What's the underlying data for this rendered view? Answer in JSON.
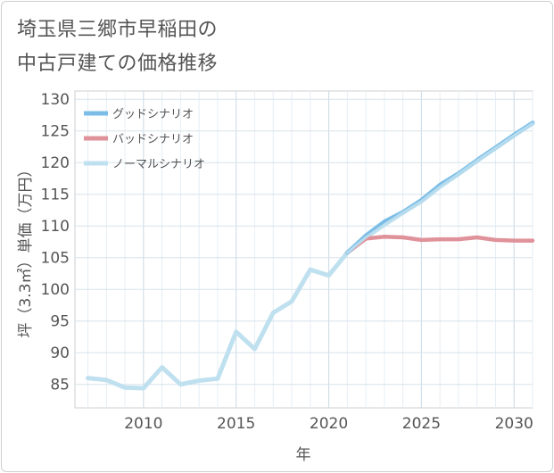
{
  "chart_data": {
    "type": "line",
    "title_line1": "埼玉県三郷市早稲田の",
    "title_line2": "中古戸建ての価格推移",
    "xlabel": "年",
    "ylabel": "坪（3.3㎡）単価（万円）",
    "xlim": [
      2006.3,
      2031
    ],
    "ylim": [
      81.3,
      131.3
    ],
    "x_ticks": [
      2010,
      2015,
      2020,
      2025,
      2030
    ],
    "y_ticks": [
      85,
      90,
      95,
      100,
      105,
      110,
      115,
      120,
      125,
      130
    ],
    "grid": true,
    "legend_position": "top-left",
    "series": [
      {
        "name": "グッドシナリオ",
        "color": "#7bbde6",
        "x": [
          2021,
          2022,
          2023,
          2024,
          2025,
          2026,
          2027,
          2028,
          2029,
          2030,
          2031
        ],
        "y": [
          105.8,
          108.5,
          110.7,
          112.2,
          114.1,
          116.5,
          118.3,
          120.4,
          122.4,
          124.4,
          126.3
        ]
      },
      {
        "name": "バッドシナリオ",
        "color": "#e0929a",
        "x": [
          2021,
          2022,
          2023,
          2024,
          2025,
          2026,
          2027,
          2028,
          2029,
          2030,
          2031
        ],
        "y": [
          105.8,
          108.0,
          108.3,
          108.2,
          107.8,
          107.9,
          107.9,
          108.2,
          107.8,
          107.7,
          107.7
        ]
      },
      {
        "name": "ノーマルシナリオ",
        "color": "#bfe0ef",
        "x": [
          2007,
          2008,
          2009,
          2010,
          2011,
          2012,
          2013,
          2014,
          2015,
          2016,
          2017,
          2018,
          2019,
          2020,
          2021,
          2022,
          2023,
          2024,
          2025,
          2026,
          2027,
          2028,
          2029,
          2030,
          2031
        ],
        "y": [
          86.0,
          85.7,
          84.5,
          84.4,
          87.7,
          85.0,
          85.6,
          85.9,
          93.3,
          90.6,
          96.3,
          98.1,
          103.1,
          102.2,
          105.8,
          108.2,
          110.2,
          112.1,
          113.9,
          116.2,
          118.2,
          120.3,
          122.3,
          124.3,
          126.2
        ]
      }
    ]
  }
}
